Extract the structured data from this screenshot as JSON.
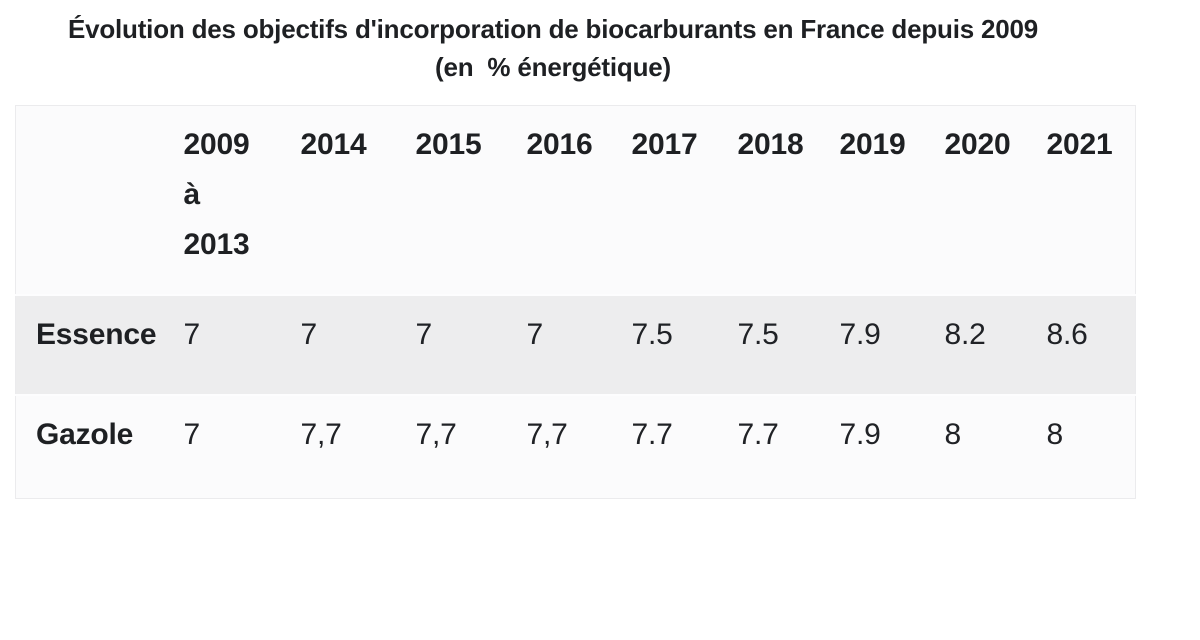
{
  "title": {
    "line1": "Évolution des objectifs d'incorporation de biocarburants en France depuis 2009",
    "line2": "(en  % énergétique)"
  },
  "table": {
    "corner_label": "",
    "columns": [
      "2009 à 2013",
      "2014",
      "2015",
      "2016",
      "2017",
      "2018",
      "2019",
      "2020",
      "2021"
    ],
    "rows": [
      {
        "label": "Essence",
        "values": [
          "7",
          "7",
          "7",
          "7",
          "7.5",
          "7.5",
          "7.9",
          "8.2",
          "8.6"
        ]
      },
      {
        "label": "Gazole",
        "values": [
          "7",
          "7,7",
          "7,7",
          "7,7",
          "7.7",
          "7.7",
          "7.9",
          "8",
          "8"
        ]
      }
    ]
  },
  "colors": {
    "page_background": "#ffffff",
    "text": "#1e2023",
    "row_light": "#fbfbfc",
    "row_striped": "#ededee",
    "table_border": "#ebebed"
  },
  "chart_data": {
    "type": "table",
    "title": "Évolution des objectifs d'incorporation de biocarburants en France depuis 2009",
    "subtitle": "(en % énergétique)",
    "unit": "% énergétique",
    "categories": [
      "2009 à 2013",
      "2014",
      "2015",
      "2016",
      "2017",
      "2018",
      "2019",
      "2020",
      "2021"
    ],
    "series": [
      {
        "name": "Essence",
        "values": [
          7,
          7,
          7,
          7,
          7.5,
          7.5,
          7.9,
          8.2,
          8.6
        ]
      },
      {
        "name": "Gazole",
        "values": [
          7,
          7.7,
          7.7,
          7.7,
          7.7,
          7.7,
          7.9,
          8,
          8
        ]
      }
    ],
    "layout": {
      "striped_row": "Essence",
      "grid": false,
      "legend": false
    }
  }
}
